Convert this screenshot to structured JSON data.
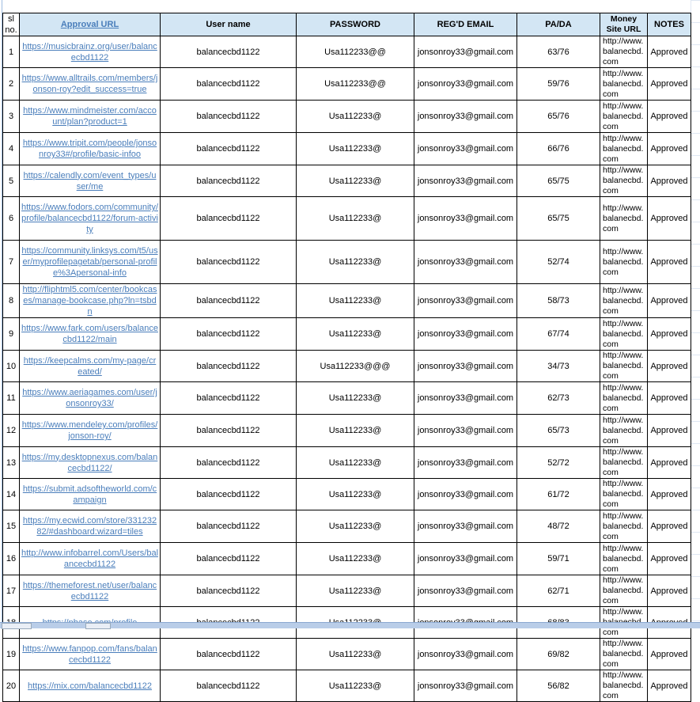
{
  "header": {
    "sl_no": "sl no.",
    "approval_url": "Approval URL",
    "user_name": "User name",
    "password": "PASSWORD",
    "email": "REG'D EMAIL",
    "pa_da": "PA/DA",
    "money_site": "Money Site URL",
    "notes": "NOTES"
  },
  "colors": {
    "header_bg": "#d3e6f4",
    "link": "#4a7ebb"
  },
  "rows": [
    {
      "sl": "1",
      "url": "https://musicbrainz.org/user/balancecbd1122",
      "user": "balancecbd1122",
      "password": "Usa112233@@",
      "email": "jonsonroy33@gmail.com",
      "pada": "63/76",
      "site": "http://www.balanecbd.com",
      "notes": "Approved"
    },
    {
      "sl": "2",
      "url": "https://www.alltrails.com/members/jonson-roy?edit_success=true",
      "user": "balancecbd1122",
      "password": "Usa112233@@",
      "email": "jonsonroy33@gmail.com",
      "pada": "59/76",
      "site": "http://www.balanecbd.com",
      "notes": "Approved"
    },
    {
      "sl": "3",
      "url": "https://www.mindmeister.com/account/plan?product=1",
      "user": "balancecbd1122",
      "password": "Usa112233@",
      "email": "jonsonroy33@gmail.com",
      "pada": "65/76",
      "site": "http://www.balanecbd.com",
      "notes": "Approved"
    },
    {
      "sl": "4",
      "url": "https://www.tripit.com/people/jonsonroy33#/profile/basic-infoo",
      "user": "balancecbd1122",
      "password": "Usa112233@",
      "email": "jonsonroy33@gmail.com",
      "pada": "66/76",
      "site": "http://www.balanecbd.com",
      "notes": "Approved"
    },
    {
      "sl": "5",
      "url": "https://calendly.com/event_types/user/me",
      "user": "balancecbd1122",
      "password": "Usa112233@",
      "email": "jonsonroy33@gmail.com",
      "pada": "65/75",
      "site": "http://www.balanecbd.com",
      "notes": "Approved"
    },
    {
      "sl": "6",
      "url": "https://www.fodors.com/community/profile/balancecbd1122/forum-activity",
      "user": "balancecbd1122",
      "password": "Usa112233@",
      "email": "jonsonroy33@gmail.com",
      "pada": "65/75",
      "site": "http://www.balanecbd.com",
      "notes": "Approved"
    },
    {
      "sl": "7",
      "url": "https://community.linksys.com/t5/user/myprofilepagetab/personal-profile%3Apersonal-info",
      "user": "balancecbd1122",
      "password": "Usa112233@",
      "email": "jonsonroy33@gmail.com",
      "pada": "52/74",
      "site": "http://www.balanecbd.com",
      "notes": "Approved"
    },
    {
      "sl": "8",
      "url": "http://fliphtml5.com/center/bookcases/manage-bookcase.php?ln=tsbdn",
      "user": "balancecbd1122",
      "password": "Usa112233@",
      "email": "jonsonroy33@gmail.com",
      "pada": "58/73",
      "site": "http://www.balanecbd.com",
      "notes": "Approved"
    },
    {
      "sl": "9",
      "url": "https://www.fark.com/users/balancecbd1122/main",
      "user": "balancecbd1122",
      "password": "Usa112233@",
      "email": "jonsonroy33@gmail.com",
      "pada": "67/74",
      "site": "http://www.balanecbd.com",
      "notes": "Approved"
    },
    {
      "sl": "10",
      "url": "https://keepcalms.com/my-page/created/",
      "user": "balancecbd1122",
      "password": "Usa112233@@@",
      "email": "jonsonroy33@gmail.com",
      "pada": "34/73",
      "site": "http://www.balanecbd.com",
      "notes": "Approved"
    },
    {
      "sl": "11",
      "url": "https://www.aeriagames.com/user/jonsonroy33/",
      "user": "balancecbd1122",
      "password": "Usa112233@",
      "email": "jonsonroy33@gmail.com",
      "pada": "62/73",
      "site": "http://www.balanecbd.com",
      "notes": "Approved"
    },
    {
      "sl": "12",
      "url": "https://www.mendeley.com/profiles/jonson-roy/",
      "user": "balancecbd1122",
      "password": "Usa112233@",
      "email": "jonsonroy33@gmail.com",
      "pada": "65/73",
      "site": "http://www.balanecbd.com",
      "notes": "Approved"
    },
    {
      "sl": "13",
      "url": "https://my.desktopnexus.com/balancecbd1122/",
      "user": "balancecbd1122",
      "password": "Usa112233@",
      "email": "jonsonroy33@gmail.com",
      "pada": "52/72",
      "site": "http://www.balanecbd.com",
      "notes": "Approved"
    },
    {
      "sl": "14",
      "url": "https://submit.adsoftheworld.com/campaign",
      "user": "balancecbd1122",
      "password": "Usa112233@",
      "email": "jonsonroy33@gmail.com",
      "pada": "61/72",
      "site": "http://www.balanecbd.com",
      "notes": "Approved"
    },
    {
      "sl": "15",
      "url": "https://my.ecwid.com/store/33123282/#dashboard:wizard=tiles",
      "user": "balancecbd1122",
      "password": "Usa112233@",
      "email": "jonsonroy33@gmail.com",
      "pada": "48/72",
      "site": "http://www.balanecbd.com",
      "notes": "Approved"
    },
    {
      "sl": "16",
      "url": "http://www.infobarrel.com/Users/balancecbd1122",
      "user": "balancecbd1122",
      "password": "Usa112233@",
      "email": "jonsonroy33@gmail.com",
      "pada": "59/71",
      "site": "http://www.balanecbd.com",
      "notes": "Approved"
    },
    {
      "sl": "17",
      "url": "https://themeforest.net/user/balancecbd1122",
      "user": "balancecbd1122",
      "password": "Usa112233@",
      "email": "jonsonroy33@gmail.com",
      "pada": "62/71",
      "site": "http://www.balanecbd.com",
      "notes": "Approved"
    },
    {
      "sl": "18",
      "url": "https://pbase.com/profile",
      "user": "balancecbd1122",
      "password": "Usa112233@",
      "email": "jonsonroy33@gmail.com",
      "pada": "68/83",
      "site": "http://www.balanecbd.com",
      "notes": "Approved"
    },
    {
      "sl": "19",
      "url": "https://www.fanpop.com/fans/balancecbd1122",
      "user": "balancecbd1122",
      "password": "Usa112233@",
      "email": "jonsonroy33@gmail.com",
      "pada": "69/82",
      "site": "http://www.balanecbd.com",
      "notes": "Approved"
    },
    {
      "sl": "20",
      "url": "https://mix.com/balancecbd1122",
      "user": "balancecbd1122",
      "password": "Usa112233@",
      "email": "jonsonroy33@gmail.com",
      "pada": "56/82",
      "site": "http://www.balanecbd.com",
      "notes": "Approved"
    }
  ]
}
